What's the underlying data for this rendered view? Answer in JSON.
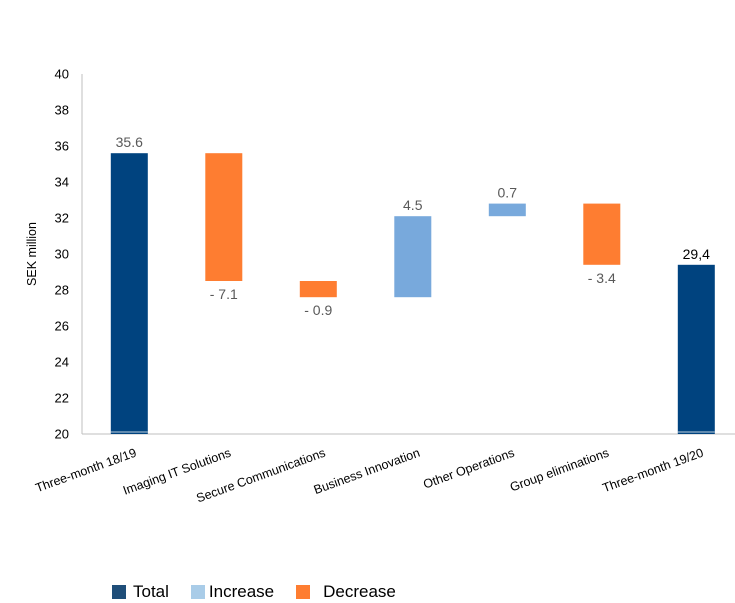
{
  "chart_data": {
    "type": "waterfall",
    "ylabel": "SEK million",
    "ylim": [
      20,
      40
    ],
    "yticks": [
      20,
      22,
      24,
      26,
      28,
      30,
      32,
      34,
      36,
      38,
      40
    ],
    "grid": false,
    "legend_position": "bottom-left",
    "categories": [
      "Three-month 18/19",
      "Imaging IT Solutions",
      "Secure Communications",
      "Business Innovation",
      "Other Operations",
      "Group eliminations",
      "Three-month 19/20"
    ],
    "bars": [
      {
        "kind": "total",
        "start": 20,
        "end": 35.6,
        "label": "35.6"
      },
      {
        "kind": "decrease",
        "start": 35.6,
        "end": 28.5,
        "label": "- 7.1"
      },
      {
        "kind": "decrease",
        "start": 28.5,
        "end": 27.6,
        "label": "- 0.9"
      },
      {
        "kind": "increase",
        "start": 27.6,
        "end": 32.1,
        "label": "4.5"
      },
      {
        "kind": "increase",
        "start": 32.1,
        "end": 32.8,
        "label": "0.7"
      },
      {
        "kind": "decrease",
        "start": 32.8,
        "end": 29.4,
        "label": "- 3.4"
      },
      {
        "kind": "total",
        "start": 20,
        "end": 29.4,
        "label": "29,4"
      }
    ],
    "legend": [
      {
        "name": "Total",
        "color": "#00437f"
      },
      {
        "name": "Increase",
        "color": "#a9cce8"
      },
      {
        "name": "Decrease",
        "color": "#fe7d31"
      }
    ],
    "colors": {
      "total": "#00437f",
      "increase": "#78a9dc",
      "decrease": "#fe7d31"
    }
  }
}
